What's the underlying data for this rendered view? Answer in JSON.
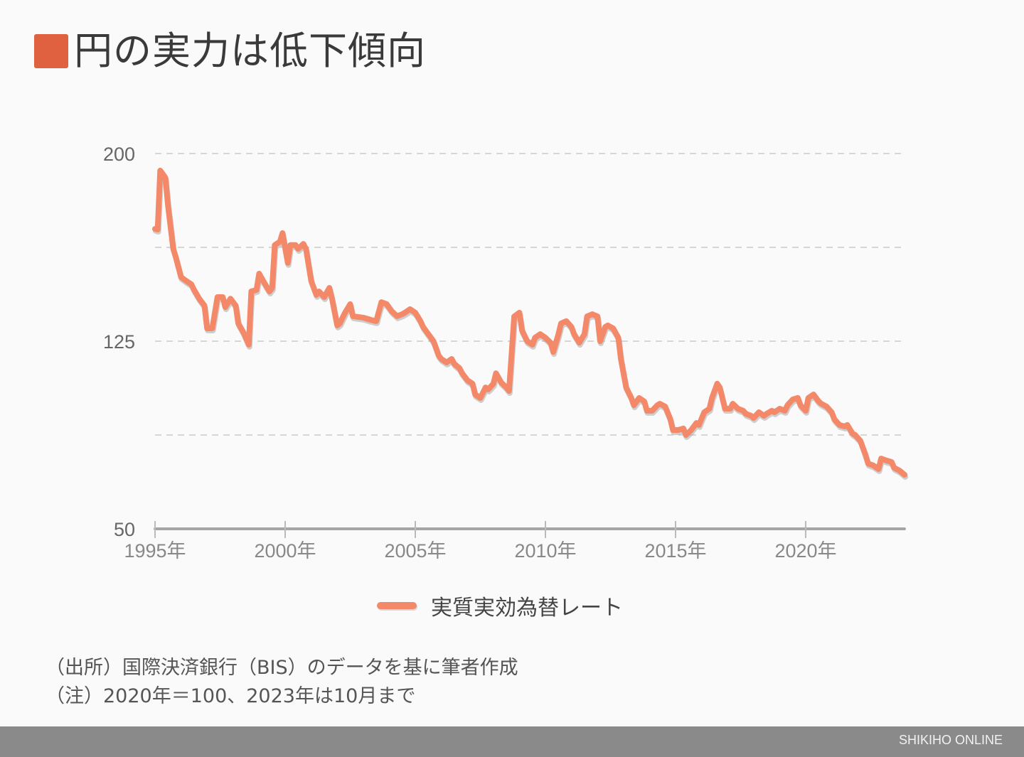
{
  "title": "円の実力は低下傾向",
  "accent_color": "#e0613f",
  "line_color": "#f4896a",
  "legend": {
    "label": "実質実効為替レート"
  },
  "notes": [
    "（出所）国際決済銀行（BIS）のデータを基に筆者作成",
    "（注）2020年＝100、2023年は10月まで"
  ],
  "footer": {
    "brand": "SHIKIHO ONLINE"
  },
  "chart_data": {
    "type": "line",
    "title": "円の実力は低下傾向",
    "xlabel": "",
    "ylabel": "",
    "ylim": [
      50,
      200
    ],
    "xlim": [
      1995,
      2023.83
    ],
    "y_ticks": [
      200,
      162.5,
      125,
      87.5,
      50
    ],
    "y_tick_labels": [
      "200",
      "",
      "125",
      "",
      "50"
    ],
    "x_ticks": [
      1995,
      2000,
      2005,
      2010,
      2015,
      2020
    ],
    "x_tick_labels": [
      "1995年",
      "2000年",
      "2005年",
      "2010年",
      "2015年",
      "2020年"
    ],
    "grid": "horizontal dashed",
    "legend_position": "bottom-center",
    "series": [
      {
        "name": "実質実効為替レート",
        "points": [
          [
            1995.0,
            169.9
          ],
          [
            1995.1,
            169.6
          ],
          [
            1995.2,
            193.2
          ],
          [
            1995.3,
            191.8
          ],
          [
            1995.4,
            190.3
          ],
          [
            1995.5,
            179.0
          ],
          [
            1995.7,
            161.9
          ],
          [
            1995.8,
            158.5
          ],
          [
            1996.0,
            150.6
          ],
          [
            1996.2,
            149.1
          ],
          [
            1996.4,
            147.7
          ],
          [
            1996.5,
            145.5
          ],
          [
            1996.7,
            142.0
          ],
          [
            1996.9,
            139.2
          ],
          [
            1997.0,
            130.1
          ],
          [
            1997.2,
            130.1
          ],
          [
            1997.4,
            142.6
          ],
          [
            1997.6,
            142.6
          ],
          [
            1997.7,
            138.6
          ],
          [
            1997.9,
            142.0
          ],
          [
            1998.1,
            139.2
          ],
          [
            1998.2,
            132.1
          ],
          [
            1998.4,
            128.4
          ],
          [
            1998.6,
            123.6
          ],
          [
            1998.7,
            144.9
          ],
          [
            1998.9,
            145.5
          ],
          [
            1999.0,
            152.0
          ],
          [
            1999.2,
            148.3
          ],
          [
            1999.4,
            144.9
          ],
          [
            1999.5,
            146.3
          ],
          [
            1999.6,
            163.4
          ],
          [
            1999.8,
            164.8
          ],
          [
            1999.9,
            168.2
          ],
          [
            2000.1,
            156.3
          ],
          [
            2000.2,
            163.4
          ],
          [
            2000.4,
            163.4
          ],
          [
            2000.5,
            161.9
          ],
          [
            2000.7,
            163.9
          ],
          [
            2000.8,
            161.9
          ],
          [
            2001.0,
            149.1
          ],
          [
            2001.2,
            143.5
          ],
          [
            2001.3,
            144.9
          ],
          [
            2001.5,
            142.6
          ],
          [
            2001.7,
            146.3
          ],
          [
            2001.8,
            142.0
          ],
          [
            2002.0,
            131.3
          ],
          [
            2002.1,
            132.1
          ],
          [
            2002.3,
            136.4
          ],
          [
            2002.5,
            139.8
          ],
          [
            2002.6,
            135.0
          ],
          [
            2003.0,
            134.4
          ],
          [
            2003.3,
            133.5
          ],
          [
            2003.5,
            133.0
          ],
          [
            2003.7,
            140.6
          ],
          [
            2003.9,
            139.8
          ],
          [
            2004.1,
            136.9
          ],
          [
            2004.3,
            135.0
          ],
          [
            2004.5,
            135.8
          ],
          [
            2004.6,
            136.4
          ],
          [
            2004.8,
            137.8
          ],
          [
            2005.0,
            136.4
          ],
          [
            2005.2,
            133.0
          ],
          [
            2005.3,
            130.7
          ],
          [
            2005.5,
            127.8
          ],
          [
            2005.7,
            125.0
          ],
          [
            2005.9,
            119.3
          ],
          [
            2006.0,
            117.9
          ],
          [
            2006.2,
            116.5
          ],
          [
            2006.4,
            117.9
          ],
          [
            2006.5,
            115.9
          ],
          [
            2006.7,
            114.2
          ],
          [
            2006.8,
            112.2
          ],
          [
            2007.0,
            109.4
          ],
          [
            2007.2,
            108.0
          ],
          [
            2007.3,
            103.7
          ],
          [
            2007.5,
            102.3
          ],
          [
            2007.7,
            106.5
          ],
          [
            2007.8,
            105.7
          ],
          [
            2008.0,
            108.0
          ],
          [
            2008.1,
            112.2
          ],
          [
            2008.3,
            108.5
          ],
          [
            2008.5,
            106.5
          ],
          [
            2008.6,
            105.1
          ],
          [
            2008.8,
            134.9
          ],
          [
            2009.0,
            136.4
          ],
          [
            2009.1,
            129.3
          ],
          [
            2009.3,
            125.0
          ],
          [
            2009.5,
            123.6
          ],
          [
            2009.6,
            126.4
          ],
          [
            2009.8,
            127.8
          ],
          [
            2010.0,
            126.4
          ],
          [
            2010.2,
            124.4
          ],
          [
            2010.3,
            120.7
          ],
          [
            2010.5,
            127.8
          ],
          [
            2010.6,
            132.1
          ],
          [
            2010.8,
            133.0
          ],
          [
            2011.0,
            130.7
          ],
          [
            2011.1,
            127.8
          ],
          [
            2011.3,
            124.4
          ],
          [
            2011.5,
            127.8
          ],
          [
            2011.6,
            134.9
          ],
          [
            2011.8,
            135.8
          ],
          [
            2012.0,
            134.9
          ],
          [
            2012.1,
            125.0
          ],
          [
            2012.3,
            130.7
          ],
          [
            2012.4,
            131.3
          ],
          [
            2012.6,
            130.1
          ],
          [
            2012.8,
            126.4
          ],
          [
            2012.9,
            117.9
          ],
          [
            2013.1,
            106.5
          ],
          [
            2013.3,
            102.3
          ],
          [
            2013.4,
            99.4
          ],
          [
            2013.6,
            102.3
          ],
          [
            2013.8,
            100.9
          ],
          [
            2013.9,
            97.2
          ],
          [
            2014.1,
            97.2
          ],
          [
            2014.3,
            99.4
          ],
          [
            2014.4,
            100.0
          ],
          [
            2014.6,
            98.9
          ],
          [
            2014.8,
            93.8
          ],
          [
            2014.9,
            89.5
          ],
          [
            2015.1,
            89.5
          ],
          [
            2015.3,
            90.1
          ],
          [
            2015.4,
            87.5
          ],
          [
            2015.6,
            89.5
          ],
          [
            2015.8,
            92.3
          ],
          [
            2015.9,
            91.5
          ],
          [
            2016.1,
            96.6
          ],
          [
            2016.3,
            98.0
          ],
          [
            2016.4,
            102.3
          ],
          [
            2016.6,
            108.0
          ],
          [
            2016.7,
            106.5
          ],
          [
            2016.9,
            98.0
          ],
          [
            2017.1,
            98.0
          ],
          [
            2017.2,
            100.0
          ],
          [
            2017.4,
            98.0
          ],
          [
            2017.6,
            97.2
          ],
          [
            2017.7,
            96.0
          ],
          [
            2017.9,
            95.2
          ],
          [
            2018.0,
            94.3
          ],
          [
            2018.2,
            96.6
          ],
          [
            2018.4,
            95.2
          ],
          [
            2018.5,
            96.0
          ],
          [
            2018.7,
            97.2
          ],
          [
            2018.8,
            96.6
          ],
          [
            2019.0,
            98.0
          ],
          [
            2019.2,
            97.2
          ],
          [
            2019.3,
            99.4
          ],
          [
            2019.5,
            101.7
          ],
          [
            2019.7,
            102.3
          ],
          [
            2019.8,
            99.4
          ],
          [
            2020.0,
            97.2
          ],
          [
            2020.1,
            102.3
          ],
          [
            2020.3,
            103.7
          ],
          [
            2020.5,
            100.9
          ],
          [
            2020.6,
            100.0
          ],
          [
            2020.8,
            98.9
          ],
          [
            2021.0,
            96.6
          ],
          [
            2021.1,
            93.8
          ],
          [
            2021.3,
            91.5
          ],
          [
            2021.5,
            90.9
          ],
          [
            2021.6,
            91.5
          ],
          [
            2021.8,
            88.1
          ],
          [
            2021.9,
            87.5
          ],
          [
            2022.1,
            85.2
          ],
          [
            2022.3,
            79.5
          ],
          [
            2022.4,
            76.1
          ],
          [
            2022.6,
            75.3
          ],
          [
            2022.8,
            73.9
          ],
          [
            2022.9,
            78.1
          ],
          [
            2023.1,
            77.3
          ],
          [
            2023.3,
            76.7
          ],
          [
            2023.4,
            74.4
          ],
          [
            2023.6,
            73.3
          ],
          [
            2023.8,
            71.6
          ]
        ]
      }
    ]
  }
}
